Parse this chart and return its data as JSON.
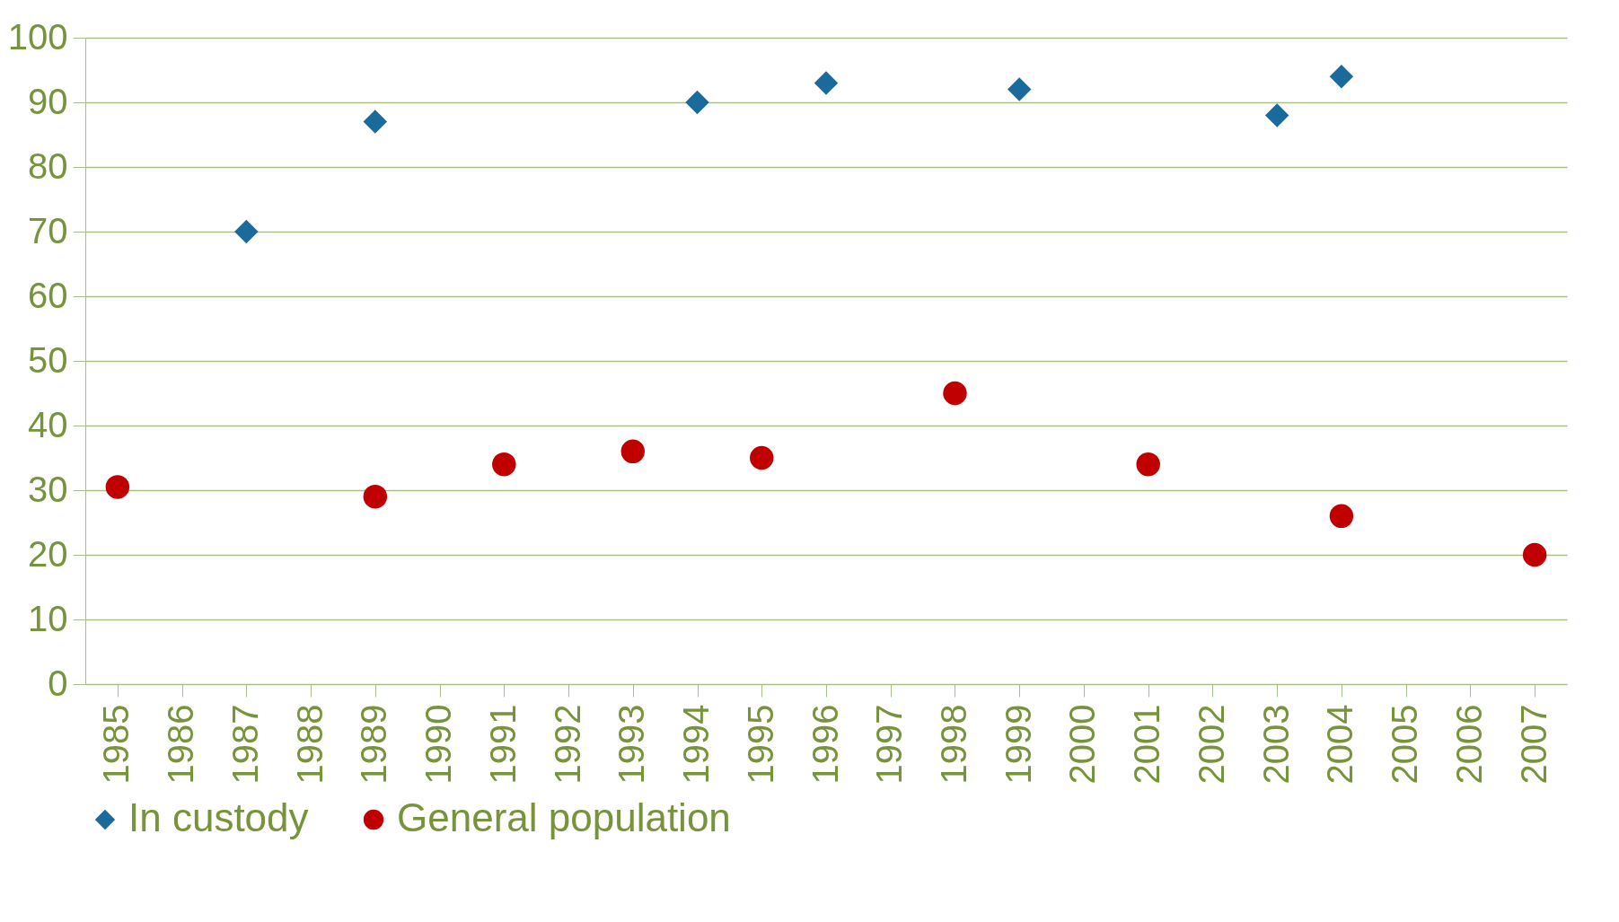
{
  "chart_data": {
    "type": "scatter",
    "categories": [
      "1985",
      "1986",
      "1987",
      "1988",
      "1989",
      "1990",
      "1991",
      "1992",
      "1993",
      "1994",
      "1995",
      "1996",
      "1997",
      "1998",
      "1999",
      "2000",
      "2001",
      "2002",
      "2003",
      "2004",
      "2005",
      "2006",
      "2007"
    ],
    "series": [
      {
        "name": "In custody",
        "color": "#1a6b9c",
        "marker": "diamond",
        "values": [
          null,
          null,
          70,
          null,
          87,
          null,
          null,
          null,
          null,
          90,
          null,
          93,
          null,
          null,
          92,
          null,
          null,
          null,
          88,
          94,
          null,
          null,
          null
        ]
      },
      {
        "name": "General population",
        "color": "#c00000",
        "marker": "circle",
        "values": [
          30.5,
          null,
          null,
          null,
          29,
          null,
          34,
          null,
          36,
          null,
          35,
          null,
          null,
          45,
          null,
          null,
          34,
          null,
          null,
          26,
          null,
          null,
          20
        ]
      }
    ],
    "ylim": [
      0,
      100
    ],
    "yticks": [
      0,
      10,
      20,
      30,
      40,
      50,
      60,
      70,
      80,
      90,
      100
    ],
    "grid": "y",
    "legend": "bottom"
  }
}
